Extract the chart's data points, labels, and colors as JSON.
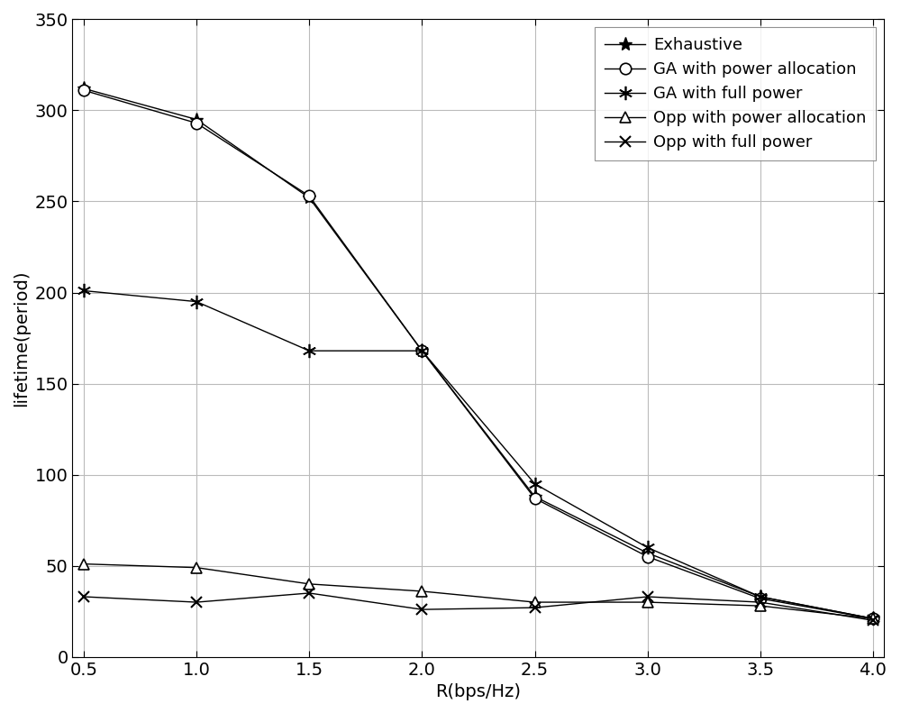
{
  "x": [
    0.5,
    1.0,
    1.5,
    2.0,
    2.5,
    3.0,
    3.5,
    4.0
  ],
  "exhaustive": [
    312,
    295,
    252,
    168,
    88,
    57,
    33,
    21
  ],
  "ga_power": [
    311,
    293,
    253,
    168,
    87,
    55,
    32,
    21
  ],
  "ga_full": [
    201,
    195,
    168,
    168,
    95,
    60,
    33,
    21
  ],
  "opp_power": [
    51,
    49,
    40,
    36,
    30,
    30,
    28,
    21
  ],
  "opp_full": [
    33,
    30,
    35,
    26,
    27,
    33,
    30,
    20
  ],
  "legend_labels": [
    "Exhaustive",
    "GA with power allocation",
    "GA with full power",
    "Opp with power allocation",
    "Opp with full power"
  ],
  "xlabel": "R(bps/Hz)",
  "ylabel": "lifetime(period)",
  "ylim": [
    0,
    350
  ],
  "yticks": [
    0,
    50,
    100,
    150,
    200,
    250,
    300,
    350
  ],
  "xticks": [
    0.5,
    1.0,
    1.5,
    2.0,
    2.5,
    3.0,
    3.5,
    4.0
  ],
  "line_color": "#000000",
  "background_color": "#ffffff",
  "grid_color": "#bbbbbb",
  "fontsize": 14,
  "legend_fontsize": 13
}
